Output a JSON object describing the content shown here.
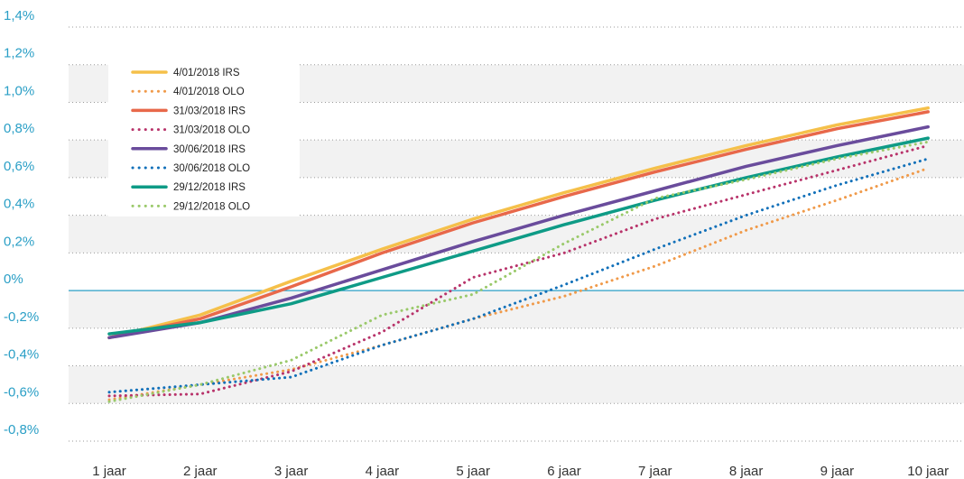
{
  "chart_data": {
    "type": "line",
    "categories": [
      "1 jaar",
      "2 jaar",
      "3 jaar",
      "4 jaar",
      "5 jaar",
      "6 jaar",
      "7 jaar",
      "8 jaar",
      "9 jaar",
      "10 jaar"
    ],
    "y_ticks": [
      "1,4%",
      "1,2%",
      "1,0%",
      "0,8%",
      "0,6%",
      "0,4%",
      "0,2%",
      "0%",
      "-0,2%",
      "-0,4%",
      "-0,6%",
      "-0,8%"
    ],
    "ylim": [
      -0.8,
      1.4
    ],
    "grid": "dotted horizontal gridlines with alternating light grey bands",
    "legend_position": "top-left",
    "series": [
      {
        "name": "4/01/2018 IRS",
        "style": "solid",
        "color": "#f5c04a",
        "values": [
          -0.25,
          -0.13,
          0.05,
          0.22,
          0.38,
          0.52,
          0.65,
          0.77,
          0.88,
          0.97
        ]
      },
      {
        "name": "4/01/2018 OLO",
        "style": "dotted",
        "color": "#f09a4a",
        "values": [
          -0.58,
          -0.5,
          -0.42,
          -0.29,
          -0.15,
          -0.03,
          0.13,
          0.32,
          0.48,
          0.65
        ]
      },
      {
        "name": "31/03/2018 IRS",
        "style": "solid",
        "color": "#e8684a",
        "values": [
          -0.25,
          -0.15,
          0.02,
          0.2,
          0.36,
          0.5,
          0.63,
          0.75,
          0.86,
          0.95
        ]
      },
      {
        "name": "31/03/2018 OLO",
        "style": "dotted",
        "color": "#b8336a",
        "values": [
          -0.56,
          -0.55,
          -0.43,
          -0.22,
          0.07,
          0.2,
          0.38,
          0.51,
          0.64,
          0.77
        ]
      },
      {
        "name": "30/06/2018 IRS",
        "style": "solid",
        "color": "#6a4c9c",
        "values": [
          -0.25,
          -0.17,
          -0.04,
          0.11,
          0.26,
          0.4,
          0.53,
          0.66,
          0.77,
          0.87
        ]
      },
      {
        "name": "30/06/2018 OLO",
        "style": "dotted",
        "color": "#1170b9",
        "values": [
          -0.54,
          -0.5,
          -0.46,
          -0.29,
          -0.15,
          0.03,
          0.22,
          0.4,
          0.56,
          0.7
        ]
      },
      {
        "name": "29/12/2018 IRS",
        "style": "solid",
        "color": "#0e9b86",
        "values": [
          -0.23,
          -0.17,
          -0.07,
          0.07,
          0.21,
          0.35,
          0.48,
          0.6,
          0.71,
          0.81
        ]
      },
      {
        "name": "29/12/2018 OLO",
        "style": "dotted",
        "color": "#9ac96a",
        "values": [
          -0.59,
          -0.5,
          -0.37,
          -0.13,
          -0.02,
          0.25,
          0.49,
          0.59,
          0.7,
          0.79
        ]
      }
    ]
  }
}
